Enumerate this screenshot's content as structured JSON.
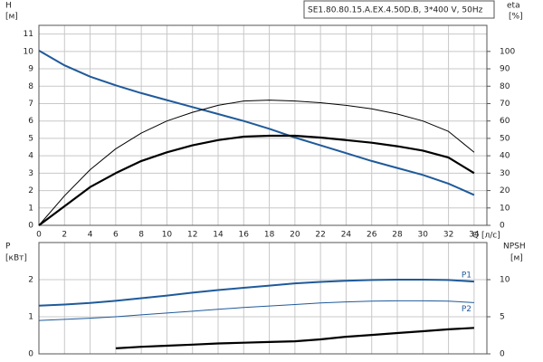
{
  "chart_data": [
    {
      "type": "line",
      "title": "SE1.80.80.15.A.EX.4.50D.B, 3*400 V, 50Hz",
      "xlabel": "Q [л/с]",
      "ylabel": "H",
      "yunit": "[м]",
      "y2label": "eta",
      "y2unit": "[%]",
      "x": [
        0,
        2,
        4,
        6,
        8,
        10,
        12,
        14,
        16,
        18,
        20,
        22,
        24,
        26,
        28,
        30,
        32,
        34
      ],
      "xlim": [
        0,
        35
      ],
      "xticks": [
        0,
        2,
        4,
        6,
        8,
        10,
        12,
        14,
        16,
        18,
        20,
        22,
        24,
        26,
        28,
        30,
        32,
        34
      ],
      "show_xtick_labels": true,
      "ylim": [
        0,
        11.5
      ],
      "yticks": [
        0,
        1,
        2,
        3,
        4,
        5,
        6,
        7,
        8,
        9,
        10,
        11
      ],
      "y2lim": [
        0,
        115
      ],
      "y2ticks": [
        0,
        10,
        20,
        30,
        40,
        50,
        60,
        70,
        80,
        90,
        100
      ],
      "grid": true,
      "series": [
        {
          "color": "#1f5a9a",
          "linewidth": 2,
          "axis": "y",
          "values": [
            10.05,
            9.2,
            8.55,
            8.05,
            7.6,
            7.2,
            6.8,
            6.4,
            6.0,
            5.55,
            5.05,
            4.6,
            4.15,
            3.7,
            3.3,
            2.9,
            2.4,
            1.75
          ]
        },
        {
          "color": "#000000",
          "linewidth": 1,
          "axis": "y2",
          "values": [
            0,
            17,
            32,
            44,
            53,
            60,
            65,
            69,
            71.5,
            72,
            71.5,
            70.5,
            69,
            67,
            64,
            60,
            54,
            42
          ]
        },
        {
          "color": "#000000",
          "linewidth": 2.2,
          "axis": "y2",
          "values": [
            0,
            11,
            22,
            30,
            37,
            42,
            46,
            49,
            51,
            51.5,
            51.5,
            50.5,
            49,
            47.5,
            45.5,
            43,
            39,
            30
          ]
        }
      ]
    },
    {
      "type": "line",
      "ylabel": "P",
      "yunit": "[кВт]",
      "y2label": "NPSH",
      "y2unit": "[м]",
      "x": [
        0,
        2,
        4,
        6,
        8,
        10,
        12,
        14,
        16,
        18,
        20,
        22,
        24,
        26,
        28,
        30,
        32,
        34
      ],
      "xlim": [
        0,
        35
      ],
      "xticks": [
        0,
        2,
        4,
        6,
        8,
        10,
        12,
        14,
        16,
        18,
        20,
        22,
        24,
        26,
        28,
        30,
        32,
        34
      ],
      "show_xtick_labels": false,
      "ylim": [
        0,
        3
      ],
      "yticks": [
        0,
        1,
        2
      ],
      "y2lim": [
        0,
        15
      ],
      "y2ticks": [
        0,
        5,
        10
      ],
      "grid": true,
      "series": [
        {
          "name": "P1",
          "color": "#1f5a9a",
          "linewidth": 2,
          "axis": "y",
          "values": [
            1.3,
            1.33,
            1.37,
            1.43,
            1.5,
            1.57,
            1.65,
            1.72,
            1.78,
            1.84,
            1.9,
            1.94,
            1.97,
            1.99,
            2.0,
            2.0,
            1.99,
            1.95
          ]
        },
        {
          "name": "P2",
          "color": "#1f5a9a",
          "linewidth": 1,
          "axis": "y",
          "values": [
            0.9,
            0.93,
            0.96,
            1.0,
            1.05,
            1.1,
            1.15,
            1.2,
            1.25,
            1.29,
            1.33,
            1.37,
            1.4,
            1.42,
            1.43,
            1.43,
            1.42,
            1.38
          ]
        },
        {
          "color": "#000000",
          "linewidth": 2.2,
          "axis": "y2",
          "values": [
            null,
            null,
            null,
            0.75,
            0.95,
            1.1,
            1.25,
            1.4,
            1.5,
            1.6,
            1.7,
            1.95,
            2.3,
            2.55,
            2.8,
            3.05,
            3.3,
            3.5
          ]
        }
      ]
    }
  ]
}
